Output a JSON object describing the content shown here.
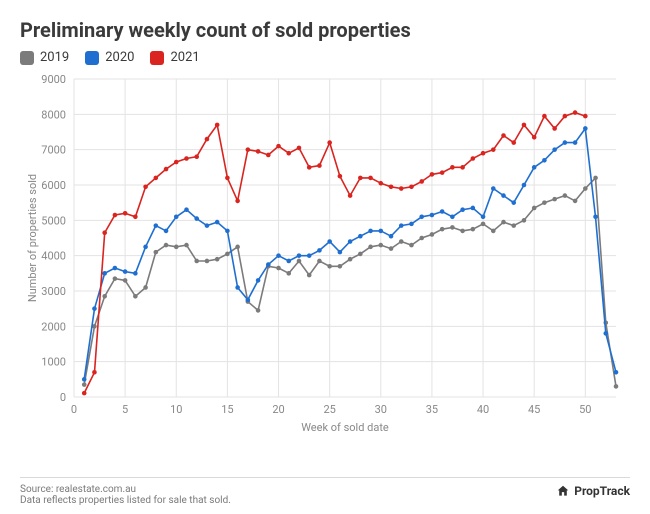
{
  "title": "Preliminary weekly count of sold properties",
  "legend": [
    {
      "label": "2019",
      "color": "#7b7b7b"
    },
    {
      "label": "2020",
      "color": "#1f6fd1"
    },
    {
      "label": "2021",
      "color": "#d9241f"
    }
  ],
  "chart": {
    "type": "line",
    "background_color": "#ffffff",
    "grid_color": "#e3e3e3",
    "axis_text_color": "#888888",
    "line_width": 1.6,
    "marker_radius": 2.3,
    "xlabel": "Week of sold date",
    "ylabel": "Number of properties sold",
    "label_fontsize": 12,
    "tick_fontsize": 11,
    "xlim": [
      0,
      53
    ],
    "ylim": [
      0,
      9000
    ],
    "xtick_step": 5,
    "ytick_step": 1000,
    "series": {
      "2019": {
        "color": "#7b7b7b",
        "x": [
          1,
          2,
          3,
          4,
          5,
          6,
          7,
          8,
          9,
          10,
          11,
          12,
          13,
          14,
          15,
          16,
          17,
          18,
          19,
          20,
          21,
          22,
          23,
          24,
          25,
          26,
          27,
          28,
          29,
          30,
          31,
          32,
          33,
          34,
          35,
          36,
          37,
          38,
          39,
          40,
          41,
          42,
          43,
          44,
          45,
          46,
          47,
          48,
          49,
          50,
          51,
          52,
          53
        ],
        "y": [
          350,
          2000,
          2850,
          3350,
          3300,
          2850,
          3100,
          4100,
          4300,
          4250,
          4300,
          3850,
          3850,
          3900,
          4050,
          4250,
          2700,
          2450,
          3700,
          3650,
          3500,
          3850,
          3450,
          3850,
          3700,
          3700,
          3900,
          4050,
          4250,
          4300,
          4200,
          4400,
          4300,
          4500,
          4600,
          4750,
          4800,
          4700,
          4750,
          4900,
          4700,
          4950,
          4850,
          5000,
          5350,
          5500,
          5600,
          5700,
          5550,
          5900,
          6200,
          2100,
          300
        ]
      },
      "2020": {
        "color": "#1f6fd1",
        "x": [
          1,
          2,
          3,
          4,
          5,
          6,
          7,
          8,
          9,
          10,
          11,
          12,
          13,
          14,
          15,
          16,
          17,
          18,
          19,
          20,
          21,
          22,
          23,
          24,
          25,
          26,
          27,
          28,
          29,
          30,
          31,
          32,
          33,
          34,
          35,
          36,
          37,
          38,
          39,
          40,
          41,
          42,
          43,
          44,
          45,
          46,
          47,
          48,
          49,
          50,
          51,
          52,
          53
        ],
        "y": [
          500,
          2500,
          3500,
          3650,
          3550,
          3500,
          4250,
          4850,
          4700,
          5100,
          5300,
          5050,
          4850,
          4950,
          4700,
          3100,
          2750,
          3300,
          3750,
          4000,
          3850,
          4000,
          4000,
          4150,
          4400,
          4100,
          4400,
          4550,
          4700,
          4700,
          4550,
          4850,
          4900,
          5100,
          5150,
          5250,
          5100,
          5300,
          5350,
          5100,
          5900,
          5700,
          5500,
          6000,
          6500,
          6700,
          7000,
          7200,
          7200,
          7600,
          5100,
          1800,
          700
        ]
      },
      "2021": {
        "color": "#d9241f",
        "x": [
          1,
          2,
          3,
          4,
          5,
          6,
          7,
          8,
          9,
          10,
          11,
          12,
          13,
          14,
          15,
          16,
          17,
          18,
          19,
          20,
          21,
          22,
          23,
          24,
          25,
          26,
          27,
          28,
          29,
          30,
          31,
          32,
          33,
          34,
          35,
          36,
          37,
          38,
          39,
          40,
          41,
          42,
          43,
          44,
          45,
          46,
          47,
          48,
          49,
          50
        ],
        "y": [
          110,
          700,
          4650,
          5150,
          5200,
          5100,
          5950,
          6200,
          6450,
          6650,
          6750,
          6800,
          7300,
          7700,
          6200,
          5550,
          7000,
          6950,
          6850,
          7100,
          6900,
          7050,
          6500,
          6550,
          7200,
          6250,
          5700,
          6200,
          6200,
          6050,
          5950,
          5900,
          5950,
          6100,
          6300,
          6350,
          6500,
          6500,
          6750,
          6900,
          7000,
          7400,
          7200,
          7700,
          7350,
          7950,
          7600,
          7950,
          8050,
          7950
        ]
      }
    }
  },
  "footer": {
    "source_line": "Source: realestate.com.au",
    "note_line": "Data reflects properties listed for sale that sold.",
    "brand": "PropTrack"
  }
}
